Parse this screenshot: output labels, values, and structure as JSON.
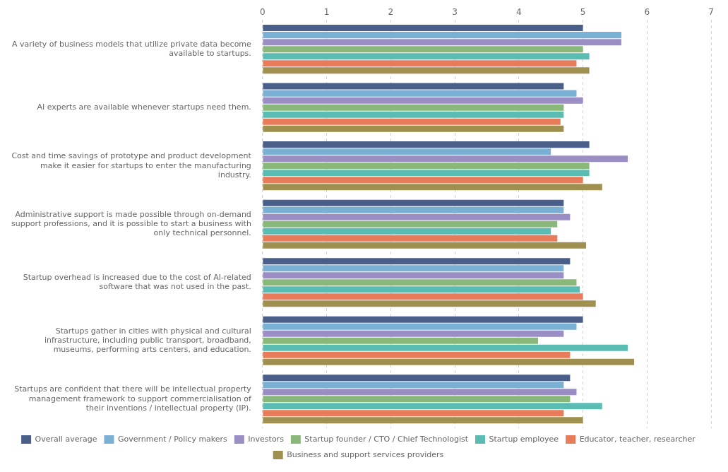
{
  "chart_data": {
    "type": "bar",
    "orientation": "horizontal",
    "categories": [
      "A variety of business models that utilize private data become\navailable to startups.",
      "AI experts are available whenever startups need them.",
      "Cost and time savings of prototype and product development\nmake it easier for startups to enter the manufacturing\nindustry.",
      "Administrative support is made possible through on-demand\nsupport professions, and it is possible to start a business with\nonly technical personnel.",
      "Startup overhead is increased due to the cost of AI-related\nsoftware that was not used in the past.",
      "Startups gather in cities with physical and cultural\ninfrastructure, including public transport, broadband,\nmuseums, performing arts centers, and education.",
      "Startups are confident that there will be intellectual property\nmanagement framework to support commercialisation of\ntheir inventions / intellectual property (IP)."
    ],
    "series": [
      {
        "name": "Overall average",
        "color": "#4a5e8a",
        "values": [
          5.0,
          4.7,
          5.1,
          4.7,
          4.8,
          5.0,
          4.8
        ]
      },
      {
        "name": "Government / Policy makers",
        "color": "#7ab0d4",
        "values": [
          5.6,
          4.9,
          4.5,
          4.7,
          4.7,
          4.9,
          4.7
        ]
      },
      {
        "name": "Investors",
        "color": "#9b8ec4",
        "values": [
          5.6,
          5.0,
          5.7,
          4.8,
          4.7,
          4.7,
          4.9
        ]
      },
      {
        "name": "Startup founder / CTO / Chief Technologist",
        "color": "#8ab87a",
        "values": [
          5.0,
          4.7,
          5.1,
          4.6,
          4.9,
          4.3,
          4.8
        ]
      },
      {
        "name": "Startup employee",
        "color": "#5bbcb4",
        "values": [
          5.1,
          4.7,
          5.1,
          4.5,
          4.95,
          5.7,
          5.3
        ]
      },
      {
        "name": "Educator, teacher, researcher",
        "color": "#e87c5a",
        "values": [
          4.9,
          4.65,
          5.0,
          4.6,
          5.0,
          4.8,
          4.7
        ]
      },
      {
        "name": "Business and support services providers",
        "color": "#a09050",
        "values": [
          5.1,
          4.7,
          5.3,
          5.05,
          5.2,
          5.8,
          5.0
        ]
      }
    ],
    "xlim": [
      0,
      7
    ],
    "xticks": [
      0,
      1,
      2,
      3,
      4,
      5,
      6,
      7
    ],
    "grid": true,
    "legend": "bottom"
  }
}
